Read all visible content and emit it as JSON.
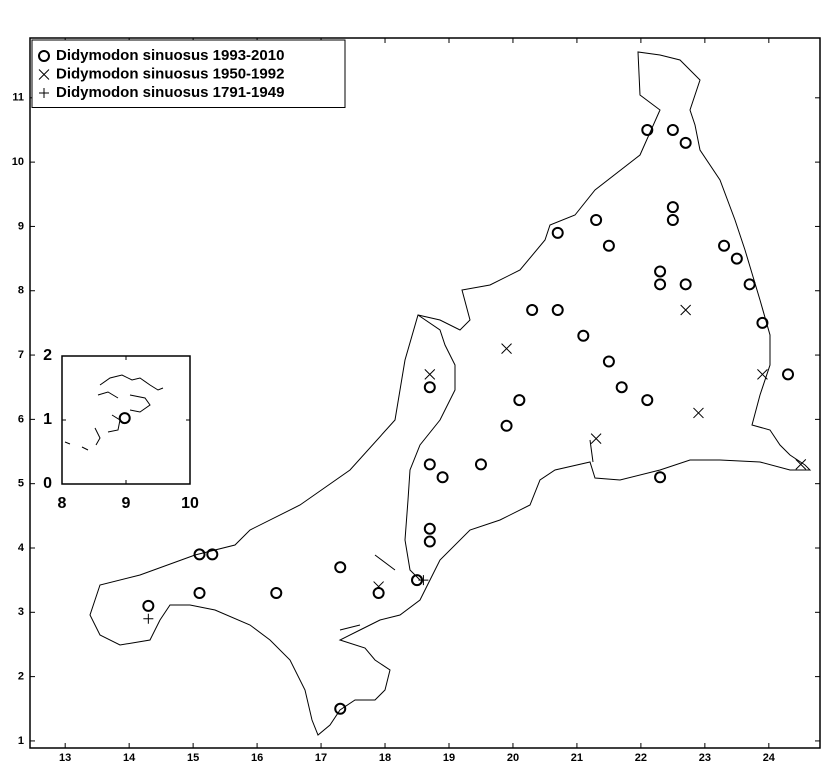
{
  "chart_data": [
    {
      "type": "scatter",
      "xlim": [
        12.45,
        24.8
      ],
      "ylim": [
        0.89,
        11.93
      ],
      "xticks": [
        13,
        14,
        15,
        16,
        17,
        18,
        19,
        20,
        21,
        22,
        23,
        24
      ],
      "yticks": [
        1,
        2,
        3,
        4,
        5,
        6,
        7,
        8,
        9,
        10,
        11
      ],
      "legend": "upper left",
      "series": [
        {
          "name": "Didymodon sinuosus 1993-2010",
          "marker": "circle",
          "color": "#000000",
          "x": [
            14.3,
            15.1,
            15.3,
            15.1,
            16.3,
            17.3,
            17.3,
            17.9,
            18.5,
            18.7,
            18.7,
            18.7,
            18.9,
            18.7,
            19.5,
            19.9,
            20.1,
            20.3,
            20.7,
            20.7,
            21.1,
            21.3,
            21.5,
            21.5,
            21.7,
            22.1,
            22.3,
            22.1,
            22.5,
            22.7,
            22.5,
            22.5,
            22.3,
            22.3,
            22.7,
            23.3,
            23.5,
            23.7,
            23.9,
            24.3
          ],
          "values": [
            3.1,
            3.9,
            3.9,
            3.3,
            3.3,
            3.7,
            1.5,
            3.3,
            3.5,
            4.3,
            4.1,
            5.3,
            5.1,
            6.5,
            5.3,
            5.9,
            6.3,
            7.7,
            7.7,
            8.9,
            7.3,
            9.1,
            8.7,
            6.9,
            6.5,
            6.3,
            5.1,
            10.5,
            10.5,
            10.3,
            9.3,
            9.1,
            8.3,
            8.1,
            8.1,
            8.7,
            8.5,
            8.1,
            7.5,
            6.7
          ]
        },
        {
          "name": "Didymodon sinuosus 1950-1992",
          "marker": "x",
          "color": "#000000",
          "x": [
            17.9,
            18.7,
            19.9,
            21.3,
            22.7,
            22.9,
            23.9,
            24.5
          ],
          "values": [
            3.4,
            6.7,
            7.1,
            5.7,
            7.7,
            6.1,
            6.7,
            5.3
          ]
        },
        {
          "name": "Didymodon sinuosus 1791-1949",
          "marker": "plus",
          "color": "#000000",
          "x": [
            14.3,
            18.6
          ],
          "values": [
            2.9,
            3.5
          ]
        }
      ]
    },
    {
      "type": "scatter",
      "xlim": [
        8,
        10
      ],
      "ylim": [
        0,
        2
      ],
      "xticks": [
        8,
        9,
        10
      ],
      "yticks": [
        0,
        1,
        2
      ],
      "series": [
        {
          "marker": "circle",
          "color": "#000000",
          "x": [
            8.98
          ],
          "values": [
            1.03
          ]
        }
      ]
    }
  ]
}
